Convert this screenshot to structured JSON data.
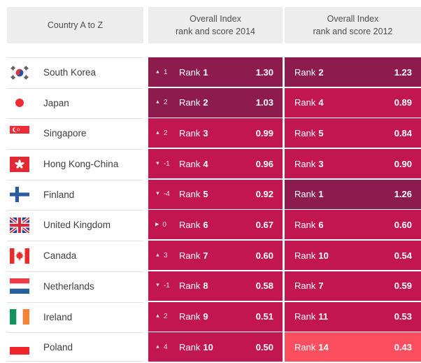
{
  "header": {
    "col_country": "Country A to Z",
    "col_2014_line1": "Overall Index",
    "col_2014_line2": "rank and score 2014",
    "col_2012_line1": "Overall Index",
    "col_2012_line2": "rank and score 2012"
  },
  "labels": {
    "rank": "Rank"
  },
  "colors": {
    "cell_high": "#8e1b4e",
    "cell_mid": "#c1164f",
    "cell_low": "#fb4f5f",
    "header_bg": "#ededed",
    "row_border": "#e3e3e3"
  },
  "rows": [
    {
      "country": "South Korea",
      "flag": "south-korea",
      "y2014": {
        "direction": "up",
        "change": "1",
        "rank": "1",
        "score": "1.30",
        "tone": "high"
      },
      "y2012": {
        "rank": "2",
        "score": "1.23",
        "tone": "high"
      }
    },
    {
      "country": "Japan",
      "flag": "japan",
      "y2014": {
        "direction": "up",
        "change": "2",
        "rank": "2",
        "score": "1.03",
        "tone": "high"
      },
      "y2012": {
        "rank": "4",
        "score": "0.89",
        "tone": "mid"
      }
    },
    {
      "country": "Singapore",
      "flag": "singapore",
      "y2014": {
        "direction": "up",
        "change": "2",
        "rank": "3",
        "score": "0.99",
        "tone": "mid"
      },
      "y2012": {
        "rank": "5",
        "score": "0.84",
        "tone": "mid"
      }
    },
    {
      "country": "Hong Kong-China",
      "flag": "hong-kong",
      "y2014": {
        "direction": "down",
        "change": "-1",
        "rank": "4",
        "score": "0.96",
        "tone": "mid"
      },
      "y2012": {
        "rank": "3",
        "score": "0.90",
        "tone": "mid"
      }
    },
    {
      "country": "Finland",
      "flag": "finland",
      "y2014": {
        "direction": "down",
        "change": "-4",
        "rank": "5",
        "score": "0.92",
        "tone": "mid"
      },
      "y2012": {
        "rank": "1",
        "score": "1.26",
        "tone": "high"
      }
    },
    {
      "country": "United Kingdom",
      "flag": "united-kingdom",
      "y2014": {
        "direction": "same",
        "change": "0",
        "rank": "6",
        "score": "0.67",
        "tone": "mid"
      },
      "y2012": {
        "rank": "6",
        "score": "0.60",
        "tone": "mid"
      }
    },
    {
      "country": "Canada",
      "flag": "canada",
      "y2014": {
        "direction": "up",
        "change": "3",
        "rank": "7",
        "score": "0.60",
        "tone": "mid"
      },
      "y2012": {
        "rank": "10",
        "score": "0.54",
        "tone": "mid"
      }
    },
    {
      "country": "Netherlands",
      "flag": "netherlands",
      "y2014": {
        "direction": "down",
        "change": "-1",
        "rank": "8",
        "score": "0.58",
        "tone": "mid"
      },
      "y2012": {
        "rank": "7",
        "score": "0.59",
        "tone": "mid"
      }
    },
    {
      "country": "Ireland",
      "flag": "ireland",
      "y2014": {
        "direction": "up",
        "change": "2",
        "rank": "9",
        "score": "0.51",
        "tone": "mid"
      },
      "y2012": {
        "rank": "11",
        "score": "0.53",
        "tone": "mid"
      }
    },
    {
      "country": "Poland",
      "flag": "poland",
      "y2014": {
        "direction": "up",
        "change": "4",
        "rank": "10",
        "score": "0.50",
        "tone": "mid"
      },
      "y2012": {
        "rank": "14",
        "score": "0.43",
        "tone": "low"
      }
    }
  ]
}
